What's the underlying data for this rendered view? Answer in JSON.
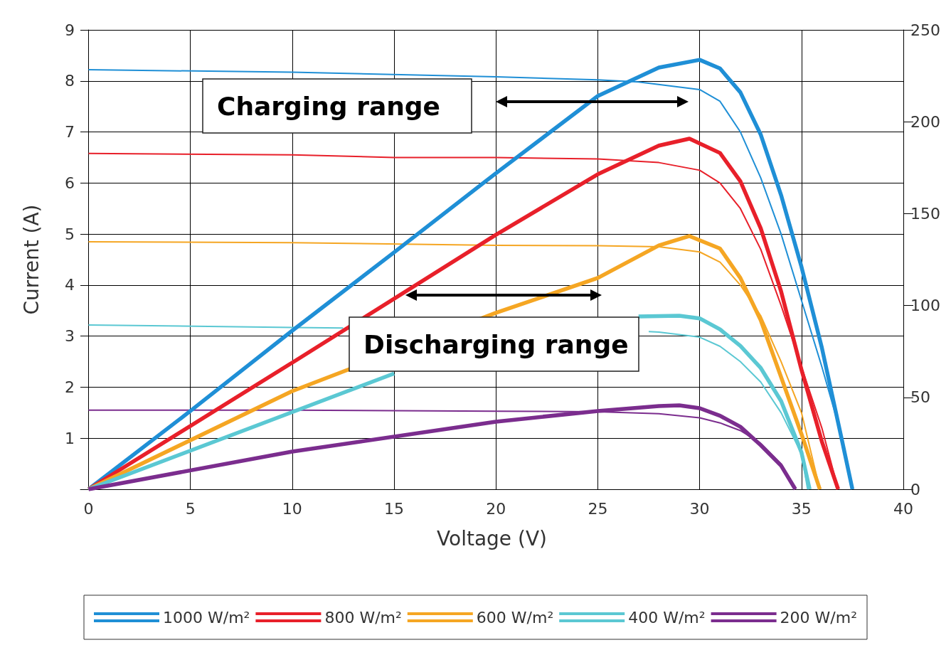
{
  "chart_data": {
    "type": "line",
    "xlabel": "Voltage (V)",
    "ylabel": "Current (A)",
    "xlim": [
      -0.4,
      40
    ],
    "xticks": [
      0,
      5,
      10,
      15,
      20,
      25,
      30,
      35,
      40
    ],
    "ylim": [
      0,
      9
    ],
    "yticks": [
      1,
      2,
      3,
      4,
      5,
      6,
      7,
      8,
      9
    ],
    "y2lim": [
      0,
      250
    ],
    "y2ticks": [
      0,
      50,
      100,
      150,
      200,
      250
    ],
    "grid": true,
    "legend": "bottom",
    "marker": "none",
    "annotations": [
      "Charging range",
      "Discharging range"
    ],
    "series": [
      {
        "name": "1000 W/m²",
        "color": "#1f8fd6",
        "axis": "y2",
        "x": [
          0,
          5,
          10,
          15,
          20,
          25,
          28,
          30,
          31,
          32,
          33,
          34,
          35,
          36,
          37,
          37.5
        ],
        "values": [
          0,
          42.6,
          86.3,
          128.9,
          172,
          214,
          229.5,
          233.7,
          229,
          216,
          193,
          160,
          121,
          77,
          26,
          0
        ]
      },
      {
        "color": "#1f8fd6",
        "x": [
          0,
          10,
          20,
          25,
          27,
          30,
          31,
          32,
          33,
          34,
          35,
          36,
          37,
          37.5
        ],
        "values": [
          8.22,
          8.17,
          8.08,
          8.02,
          7.98,
          7.83,
          7.6,
          7.0,
          6.1,
          5.0,
          3.7,
          2.4,
          1.0,
          0
        ]
      },
      {
        "name": "800 W/m²",
        "color": "#e8202a",
        "axis": "y2",
        "x": [
          0,
          10,
          20,
          25,
          28,
          29.5,
          31,
          32,
          33,
          34,
          35,
          36,
          36.8
        ],
        "values": [
          0,
          68.9,
          138.5,
          171.4,
          187,
          190.8,
          183,
          167.6,
          142,
          107.6,
          65,
          26,
          0
        ]
      },
      {
        "color": "#e8202a",
        "x": [
          0,
          10,
          15,
          20,
          25,
          28,
          30,
          31,
          32,
          33,
          34,
          35,
          36,
          36.8
        ],
        "values": [
          6.58,
          6.55,
          6.5,
          6.5,
          6.47,
          6.4,
          6.25,
          6.0,
          5.5,
          4.7,
          3.6,
          2.4,
          1.2,
          0
        ]
      },
      {
        "name": "600 W/m²",
        "color": "#f5a623",
        "axis": "y2",
        "x": [
          0,
          10,
          20,
          25,
          28,
          29.5,
          31,
          32,
          33,
          34,
          35,
          35.9
        ],
        "values": [
          0,
          53.4,
          96,
          115,
          132.7,
          137.8,
          131,
          115,
          92,
          61,
          30,
          0
        ]
      },
      {
        "color": "#f5a623",
        "x": [
          0,
          10,
          20,
          25,
          28,
          30,
          31,
          32,
          33,
          34,
          35,
          35.9
        ],
        "values": [
          4.85,
          4.83,
          4.78,
          4.77,
          4.75,
          4.65,
          4.45,
          4.0,
          3.4,
          2.5,
          1.5,
          0
        ]
      },
      {
        "name": "400 W/m²",
        "color": "#5bc8d3",
        "axis": "y2",
        "x": [
          0,
          5,
          10,
          15,
          20,
          25,
          27,
          29,
          30,
          31,
          32,
          33,
          34,
          35,
          35.4
        ],
        "values": [
          0,
          21,
          42,
          63,
          null,
          null,
          94,
          94.4,
          93,
          87,
          78,
          66,
          48,
          20,
          0
        ]
      },
      {
        "color": "#5bc8d3",
        "x": [
          0,
          10,
          12.5,
          15,
          20,
          25,
          27.5,
          28,
          30,
          31,
          32,
          33,
          34,
          35,
          35.3
        ],
        "values": [
          3.22,
          3.17,
          3.16,
          null,
          null,
          null,
          3.09,
          3.08,
          2.98,
          2.8,
          2.5,
          2.1,
          1.5,
          0.7,
          0
        ]
      },
      {
        "name": "200 W/m²",
        "color": "#7b2d8e",
        "axis": "y2",
        "x": [
          0,
          10,
          20,
          25,
          28,
          29,
          30,
          31,
          32,
          33,
          34,
          34.7
        ],
        "values": [
          0,
          20.5,
          36.8,
          42.6,
          45.3,
          45.7,
          44.1,
          40,
          34,
          24,
          12.8,
          0
        ]
      },
      {
        "color": "#7b2d8e",
        "x": [
          0,
          10,
          20,
          25,
          28,
          30,
          31,
          32,
          33,
          34,
          34.7
        ],
        "values": [
          1.55,
          1.55,
          1.53,
          1.52,
          1.48,
          1.4,
          1.3,
          1.15,
          0.9,
          0.5,
          0
        ]
      }
    ]
  }
}
